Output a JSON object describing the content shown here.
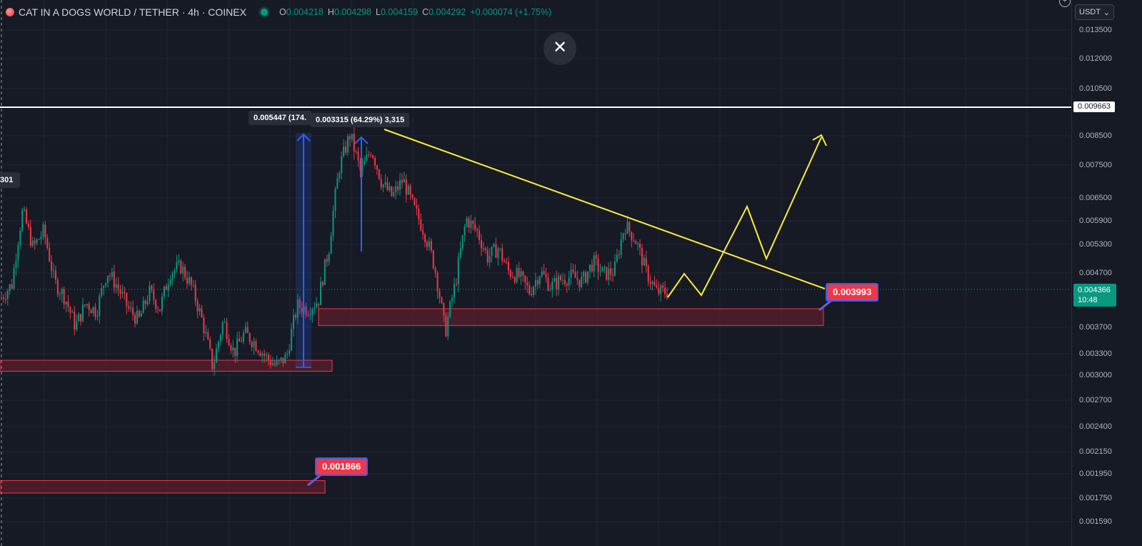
{
  "header": {
    "symbol": "CAT IN A DOGS WORLD / TETHER · 4h · COINEX",
    "ohlc": {
      "open_key": "O",
      "open": "0.004218",
      "high_key": "H",
      "high": "0.004298",
      "low_key": "L",
      "low": "0.004159",
      "close_key": "C",
      "close": "0.004292",
      "change": "+0.000074 (+1.75%)"
    }
  },
  "toolbar": {
    "close_glyph": "✕",
    "currency": "USDT",
    "chevron": "⌄",
    "plus": "+"
  },
  "price_axis": {
    "labels": [
      "0.013500",
      "0.012000",
      "0.010500",
      "0.008500",
      "0.007500",
      "0.006500",
      "0.005900",
      "0.005300",
      "0.004700",
      "0.003700",
      "0.003300",
      "0.003000",
      "0.002700",
      "0.002400",
      "0.002150",
      "0.001950",
      "0.001750",
      "0.001590"
    ],
    "horizontal_line_price": "0.009663",
    "current_price": "0.004366",
    "countdown": "10:48"
  },
  "annotations": {
    "measure_1": "0.005447 (174.",
    "measure_2": "0.003315 (64.29%) 3,315",
    "left_clipped_label": "301",
    "callout_upper": "0.003993",
    "callout_lower": "0.001866"
  },
  "colors": {
    "background": "#161a25",
    "grid": "#232633",
    "up": "#089981",
    "down": "#f23645",
    "zone_fill": "#5a1f2b",
    "zone_border": "#f23645",
    "trendline": "#ffeb3b",
    "measure": "#2962ff",
    "hline": "#ffffff"
  },
  "chart_data": {
    "type": "candlestick",
    "timeframe": "4h",
    "y_scale": "log",
    "price_path": [
      0.0042,
      0.00445,
      0.0061,
      0.0052,
      0.0056,
      0.0045,
      0.0042,
      0.0037,
      0.0041,
      0.00395,
      0.0047,
      0.0044,
      0.004,
      0.0038,
      0.0043,
      0.004,
      0.0047,
      0.0048,
      0.0044,
      0.0038,
      0.0031,
      0.0038,
      0.0033,
      0.0036,
      0.00345,
      0.00325,
      0.00312,
      0.00325,
      0.00405,
      0.004,
      0.00415,
      0.0052,
      0.0074,
      0.0085,
      0.0072,
      0.008,
      0.0069,
      0.0065,
      0.007,
      0.0062,
      0.0056,
      0.0048,
      0.0036,
      0.0045,
      0.0059,
      0.0056,
      0.005,
      0.0052,
      0.0047,
      0.0046,
      0.0043,
      0.0047,
      0.0044,
      0.00455,
      0.0046,
      0.0045,
      0.0049,
      0.00465,
      0.0047,
      0.00575,
      0.0054,
      0.0047,
      0.0043,
      0.0043
    ],
    "demand_zones": [
      {
        "low": 0.00305,
        "high": 0.0032
      },
      {
        "low": 0.00372,
        "high": 0.004
      },
      {
        "low": 0.0018,
        "high": 0.0019
      }
    ],
    "resistance_level": 0.009663,
    "descending_trendline": [
      {
        "price": 0.0086
      },
      {
        "price": 0.00435
      }
    ],
    "projection_path": [
      0.00412,
      0.0044,
      0.00412,
      0.005,
      0.0063,
      0.00515,
      0.0086
    ]
  }
}
